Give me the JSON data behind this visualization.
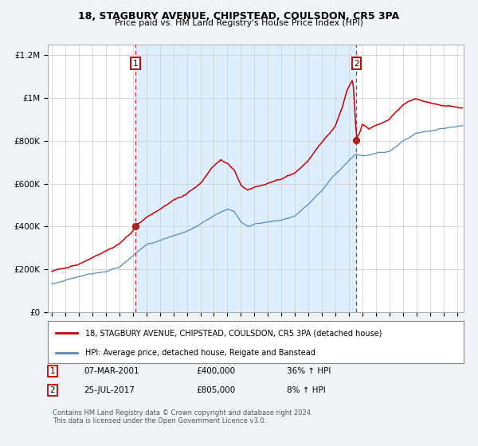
{
  "title": "18, STAGBURY AVENUE, CHIPSTEAD, COULSDON, CR5 3PA",
  "subtitle": "Price paid vs. HM Land Registry's House Price Index (HPI)",
  "red_label": "18, STAGBURY AVENUE, CHIPSTEAD, COULSDON, CR5 3PA (detached house)",
  "blue_label": "HPI: Average price, detached house, Reigate and Banstead",
  "footer": "Contains HM Land Registry data © Crown copyright and database right 2024.\nThis data is licensed under the Open Government Licence v3.0.",
  "sale1_date": "07-MAR-2001",
  "sale1_price": "£400,000",
  "sale1_hpi": "36% ↑ HPI",
  "sale1_x": 2001.17,
  "sale2_date": "25-JUL-2017",
  "sale2_price": "£805,000",
  "sale2_hpi": "8% ↑ HPI",
  "sale2_x": 2017.56,
  "red_color": "#cc0000",
  "blue_color": "#5588bb",
  "blue_fill_color": "#ddeeff",
  "dashed_color": "#cc0000",
  "bg_color": "#f0f4f8",
  "plot_bg": "#ffffff",
  "sale1_y": 400000,
  "sale2_y": 805000,
  "ylim": [
    0,
    1250000
  ],
  "xlim_start": 1994.7,
  "xlim_end": 2025.5,
  "yticks": [
    0,
    200000,
    400000,
    600000,
    800000,
    1000000,
    1200000
  ],
  "ylabels": [
    "£0",
    "£200K",
    "£400K",
    "£600K",
    "£800K",
    "£1M",
    "£1.2M"
  ]
}
